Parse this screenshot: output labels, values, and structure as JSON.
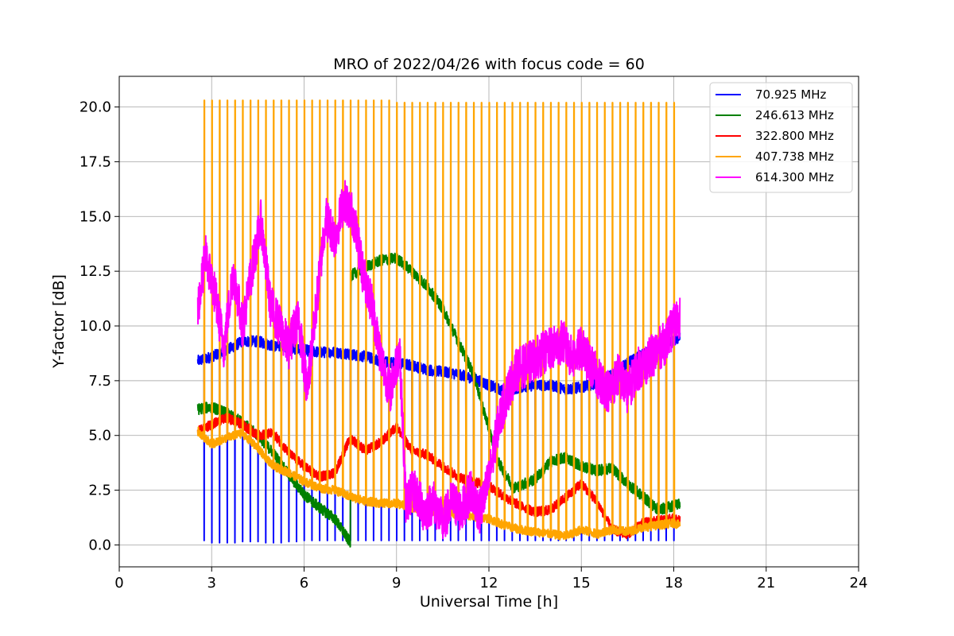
{
  "chart_data": {
    "type": "line",
    "title": "MRO of 2022/04/26 with focus code = 60",
    "xlabel": "Universal Time [h]",
    "ylabel": "Y-factor [dB]",
    "xlim": [
      0,
      24
    ],
    "ylim": [
      -1,
      21.4
    ],
    "xticks": [
      0,
      3,
      6,
      9,
      12,
      15,
      18,
      21,
      24
    ],
    "yticks": [
      0.0,
      2.5,
      5.0,
      7.5,
      10.0,
      12.5,
      15.0,
      17.5,
      20.0
    ],
    "xtick_labels": [
      "0",
      "3",
      "6",
      "9",
      "12",
      "15",
      "18",
      "21",
      "24"
    ],
    "ytick_labels": [
      "0.0",
      "2.5",
      "5.0",
      "7.5",
      "10.0",
      "12.5",
      "15.0",
      "17.5",
      "20.0"
    ],
    "grid": true,
    "legend_position": "top-right",
    "calibration_dips": {
      "start_hour": 2.75,
      "interval_hours": 0.25,
      "end_hour": 18.0
    },
    "series": [
      {
        "name": " 70.925 MHz",
        "color": "#0000ff",
        "x": [
          2.55,
          3.0,
          3.5,
          4.0,
          4.5,
          5.0,
          5.5,
          6.0,
          6.5,
          7.0,
          7.5,
          8.0,
          8.5,
          9.0,
          9.5,
          10.0,
          10.5,
          11.0,
          11.5,
          12.0,
          12.5,
          13.0,
          13.5,
          14.0,
          14.5,
          15.0,
          15.5,
          16.0,
          16.5,
          17.0,
          17.5,
          18.0,
          18.2
        ],
        "y": [
          8.4,
          8.6,
          8.9,
          9.3,
          9.3,
          9.1,
          9.0,
          8.9,
          8.8,
          8.8,
          8.7,
          8.6,
          8.4,
          8.3,
          8.2,
          8.0,
          7.9,
          7.8,
          7.6,
          7.3,
          7.0,
          7.2,
          7.3,
          7.3,
          7.1,
          7.2,
          7.4,
          7.8,
          8.3,
          8.7,
          9.0,
          9.3,
          9.5
        ],
        "dip_values": [
          0.2,
          0.1,
          0.1,
          0.1,
          0.1,
          0.15,
          0.15,
          0.15,
          0.1,
          0.1,
          0.1,
          0.15,
          0.15,
          0.2,
          0.2,
          0.2,
          0.2,
          0.2,
          0.2,
          0.2,
          0.2,
          0.2,
          0.2,
          0.2,
          0.2,
          0.2,
          0.2,
          0.2,
          0.2,
          0.2,
          0.2,
          0.2,
          0.2,
          0.2,
          0.2,
          0.2,
          0.2,
          0.2,
          0.2,
          0.2,
          0.2,
          0.2,
          0.2,
          0.2,
          0.2,
          0.2,
          0.2,
          0.2,
          0.2,
          0.2,
          0.2,
          0.2,
          0.2,
          0.2,
          0.2,
          0.2,
          0.2,
          0.2,
          0.2,
          0.2,
          0.2,
          0.2
        ],
        "noise": 0.25
      },
      {
        "name": "246.613 MHz",
        "color": "#008000",
        "x": [
          2.55,
          3.0,
          3.5,
          4.0,
          4.5,
          5.0,
          5.5,
          6.0,
          6.5,
          7.0,
          7.5,
          7.52,
          8.0,
          8.5,
          9.0,
          9.5,
          10.0,
          10.5,
          11.0,
          11.5,
          12.0,
          12.3,
          12.8,
          13.5,
          14.0,
          14.5,
          15.0,
          15.5,
          16.0,
          16.5,
          17.0,
          17.5,
          18.0,
          18.2
        ],
        "y": [
          6.2,
          6.3,
          6.0,
          5.6,
          5.0,
          4.2,
          3.2,
          2.3,
          1.7,
          1.2,
          0.1,
          12.3,
          12.7,
          13.0,
          13.1,
          12.5,
          11.8,
          10.8,
          9.3,
          7.8,
          5.3,
          3.8,
          2.6,
          3.0,
          3.8,
          4.0,
          3.6,
          3.4,
          3.5,
          2.8,
          2.2,
          1.6,
          1.8,
          1.9
        ],
        "noise": 0.25
      },
      {
        "name": "322.800 MHz",
        "color": "#ff0000",
        "x": [
          2.55,
          3.0,
          3.5,
          4.0,
          4.5,
          5.0,
          5.5,
          6.0,
          6.5,
          7.0,
          7.5,
          8.0,
          8.5,
          9.0,
          9.5,
          10.0,
          10.5,
          11.0,
          11.5,
          12.0,
          12.5,
          13.0,
          13.5,
          14.0,
          14.5,
          15.0,
          15.5,
          16.0,
          16.5,
          17.0,
          17.5,
          18.0,
          18.2
        ],
        "y": [
          5.2,
          5.5,
          5.8,
          5.5,
          5.0,
          5.1,
          4.2,
          3.6,
          3.1,
          3.3,
          4.9,
          4.3,
          4.7,
          5.4,
          4.3,
          4.1,
          3.6,
          3.1,
          2.9,
          2.7,
          2.2,
          1.8,
          1.5,
          1.6,
          2.2,
          2.8,
          2.0,
          0.7,
          0.5,
          1.0,
          1.1,
          1.2,
          1.1
        ],
        "noise": 0.22
      },
      {
        "name": "407.738 MHz",
        "color": "#ffa500",
        "x": [
          2.55,
          3.0,
          3.5,
          4.0,
          4.5,
          5.0,
          5.5,
          6.0,
          6.5,
          7.0,
          7.5,
          8.0,
          8.5,
          9.0,
          9.5,
          10.0,
          10.5,
          11.0,
          11.5,
          12.0,
          12.5,
          13.0,
          13.5,
          14.0,
          14.5,
          15.0,
          15.5,
          16.0,
          16.5,
          17.0,
          17.5,
          18.0,
          18.2
        ],
        "y": [
          5.2,
          4.6,
          4.9,
          5.1,
          4.4,
          3.6,
          3.3,
          2.9,
          2.6,
          2.5,
          2.2,
          2.0,
          1.9,
          1.9,
          1.7,
          1.6,
          1.5,
          1.4,
          1.3,
          1.2,
          0.9,
          0.7,
          0.6,
          0.5,
          0.4,
          0.7,
          0.5,
          0.7,
          0.6,
          0.8,
          0.9,
          1.0,
          0.9
        ],
        "peak_values": [
          20.3,
          20.3,
          20.3,
          20.3,
          20.3,
          20.3,
          20.3,
          20.3,
          20.3,
          20.3,
          20.3,
          20.3,
          20.3,
          20.3,
          20.3,
          20.3,
          20.3,
          20.3,
          20.3,
          20.3,
          20.3,
          20.3,
          20.3,
          20.3,
          20.3,
          20.2,
          20.2,
          20.2,
          20.2,
          20.2,
          20.2,
          20.2,
          20.2,
          20.2,
          20.2,
          20.2,
          20.2,
          20.2,
          20.2,
          20.2,
          20.2,
          20.2,
          20.2,
          20.2,
          20.2,
          20.2,
          20.2,
          20.2,
          20.2,
          20.2,
          20.2,
          20.2,
          20.2,
          20.2,
          20.2,
          20.2,
          20.2,
          20.2,
          20.2,
          20.2,
          20.2,
          20.2
        ],
        "noise": 0.2
      },
      {
        "name": "614.300 MHz",
        "color": "#ff00ff",
        "x": [
          2.55,
          2.8,
          3.1,
          3.4,
          3.7,
          4.0,
          4.3,
          4.6,
          4.9,
          5.2,
          5.5,
          5.8,
          6.1,
          6.4,
          6.7,
          7.0,
          7.3,
          7.6,
          7.9,
          8.2,
          8.5,
          8.8,
          9.1,
          9.3,
          9.6,
          9.9,
          10.2,
          10.5,
          10.8,
          11.1,
          11.4,
          11.7,
          12.0,
          12.3,
          12.6,
          12.9,
          13.2,
          13.5,
          13.8,
          14.1,
          14.4,
          14.7,
          15.0,
          15.3,
          15.6,
          15.9,
          16.2,
          16.5,
          16.8,
          17.1,
          17.4,
          17.7,
          18.0,
          18.2
        ],
        "y": [
          10.8,
          13.2,
          11.5,
          9.0,
          12.5,
          10.0,
          12.5,
          14.8,
          11.0,
          10.0,
          9.0,
          10.5,
          7.0,
          11.0,
          15.0,
          14.0,
          15.8,
          15.0,
          12.5,
          11.0,
          8.5,
          7.0,
          9.0,
          2.0,
          2.5,
          1.5,
          2.0,
          1.0,
          2.0,
          1.5,
          2.5,
          1.5,
          3.0,
          5.5,
          7.0,
          8.0,
          8.2,
          8.5,
          8.8,
          9.0,
          9.3,
          8.5,
          9.0,
          8.2,
          7.5,
          7.0,
          7.8,
          7.0,
          8.0,
          8.3,
          8.8,
          9.2,
          10.0,
          10.5
        ],
        "noise": 1.0
      }
    ]
  }
}
